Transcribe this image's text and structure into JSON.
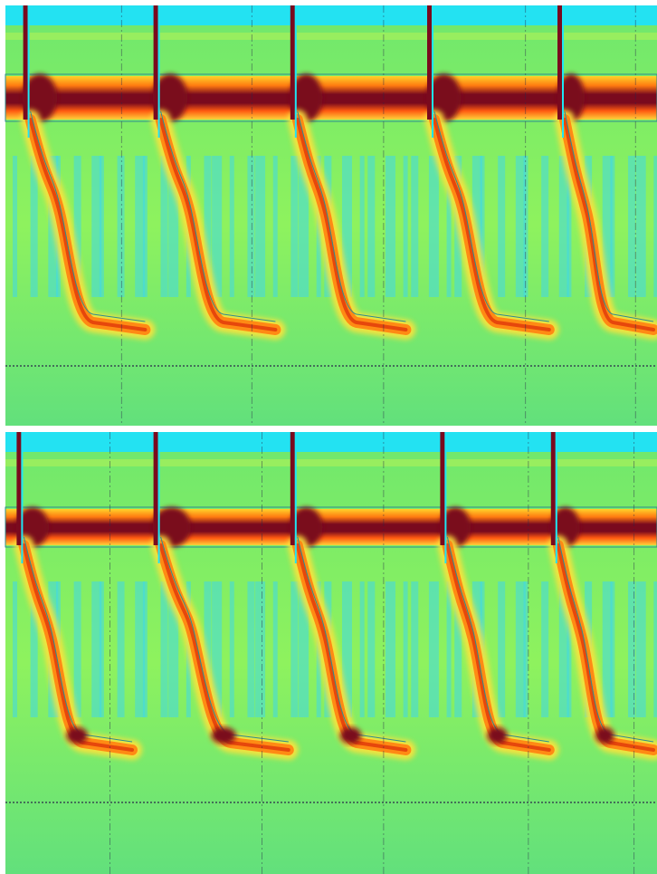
{
  "chart_data": [
    {
      "type": "heatmap",
      "panel": "upper",
      "colormap": [
        "#1ee6f5",
        "#8cf064",
        "#f0f532",
        "#ff9618",
        "#e01e00",
        "#7a0a1e"
      ],
      "colors": {
        "background": "#23e2f2",
        "field": "#6fe27a",
        "band": "#ff4a10",
        "core": "#7a0a1e",
        "contour": "#2e8e8e",
        "divider": "#2a2a4a"
      },
      "x_range": [
        0,
        1
      ],
      "grid": false,
      "legend": false,
      "cycles": [
        {
          "onset": 0.03,
          "settle": 0.22
        },
        {
          "onset": 0.23,
          "settle": 0.42
        },
        {
          "onset": 0.44,
          "settle": 0.62
        },
        {
          "onset": 0.65,
          "settle": 0.84
        },
        {
          "onset": 0.85,
          "settle": 1.0
        }
      ]
    },
    {
      "type": "heatmap",
      "panel": "lower",
      "colormap": [
        "#1ee6f5",
        "#8cf064",
        "#f0f532",
        "#ff9618",
        "#e01e00",
        "#7a0a1e"
      ],
      "x_range": [
        0,
        1
      ],
      "grid": false,
      "legend": false,
      "cycles": [
        {
          "onset": 0.02,
          "settle": 0.2
        },
        {
          "onset": 0.23,
          "settle": 0.44
        },
        {
          "onset": 0.44,
          "settle": 0.62
        },
        {
          "onset": 0.67,
          "settle": 0.84
        },
        {
          "onset": 0.84,
          "settle": 1.0
        }
      ]
    }
  ]
}
